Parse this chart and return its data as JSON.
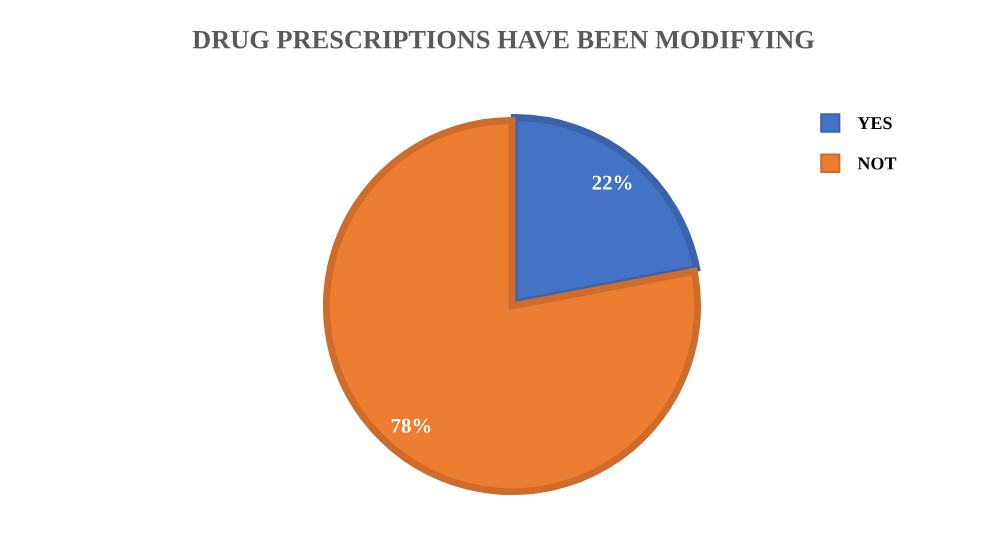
{
  "chart_data": {
    "type": "pie",
    "title": "DRUG PRESCRIPTIONS HAVE BEEN MODIFYING",
    "categories": [
      "YES",
      "NOT"
    ],
    "values": [
      22,
      78
    ],
    "colors": [
      "#4472c4",
      "#ed7d31"
    ],
    "value_labels": [
      "22%",
      "78%"
    ],
    "legend": "top right"
  }
}
